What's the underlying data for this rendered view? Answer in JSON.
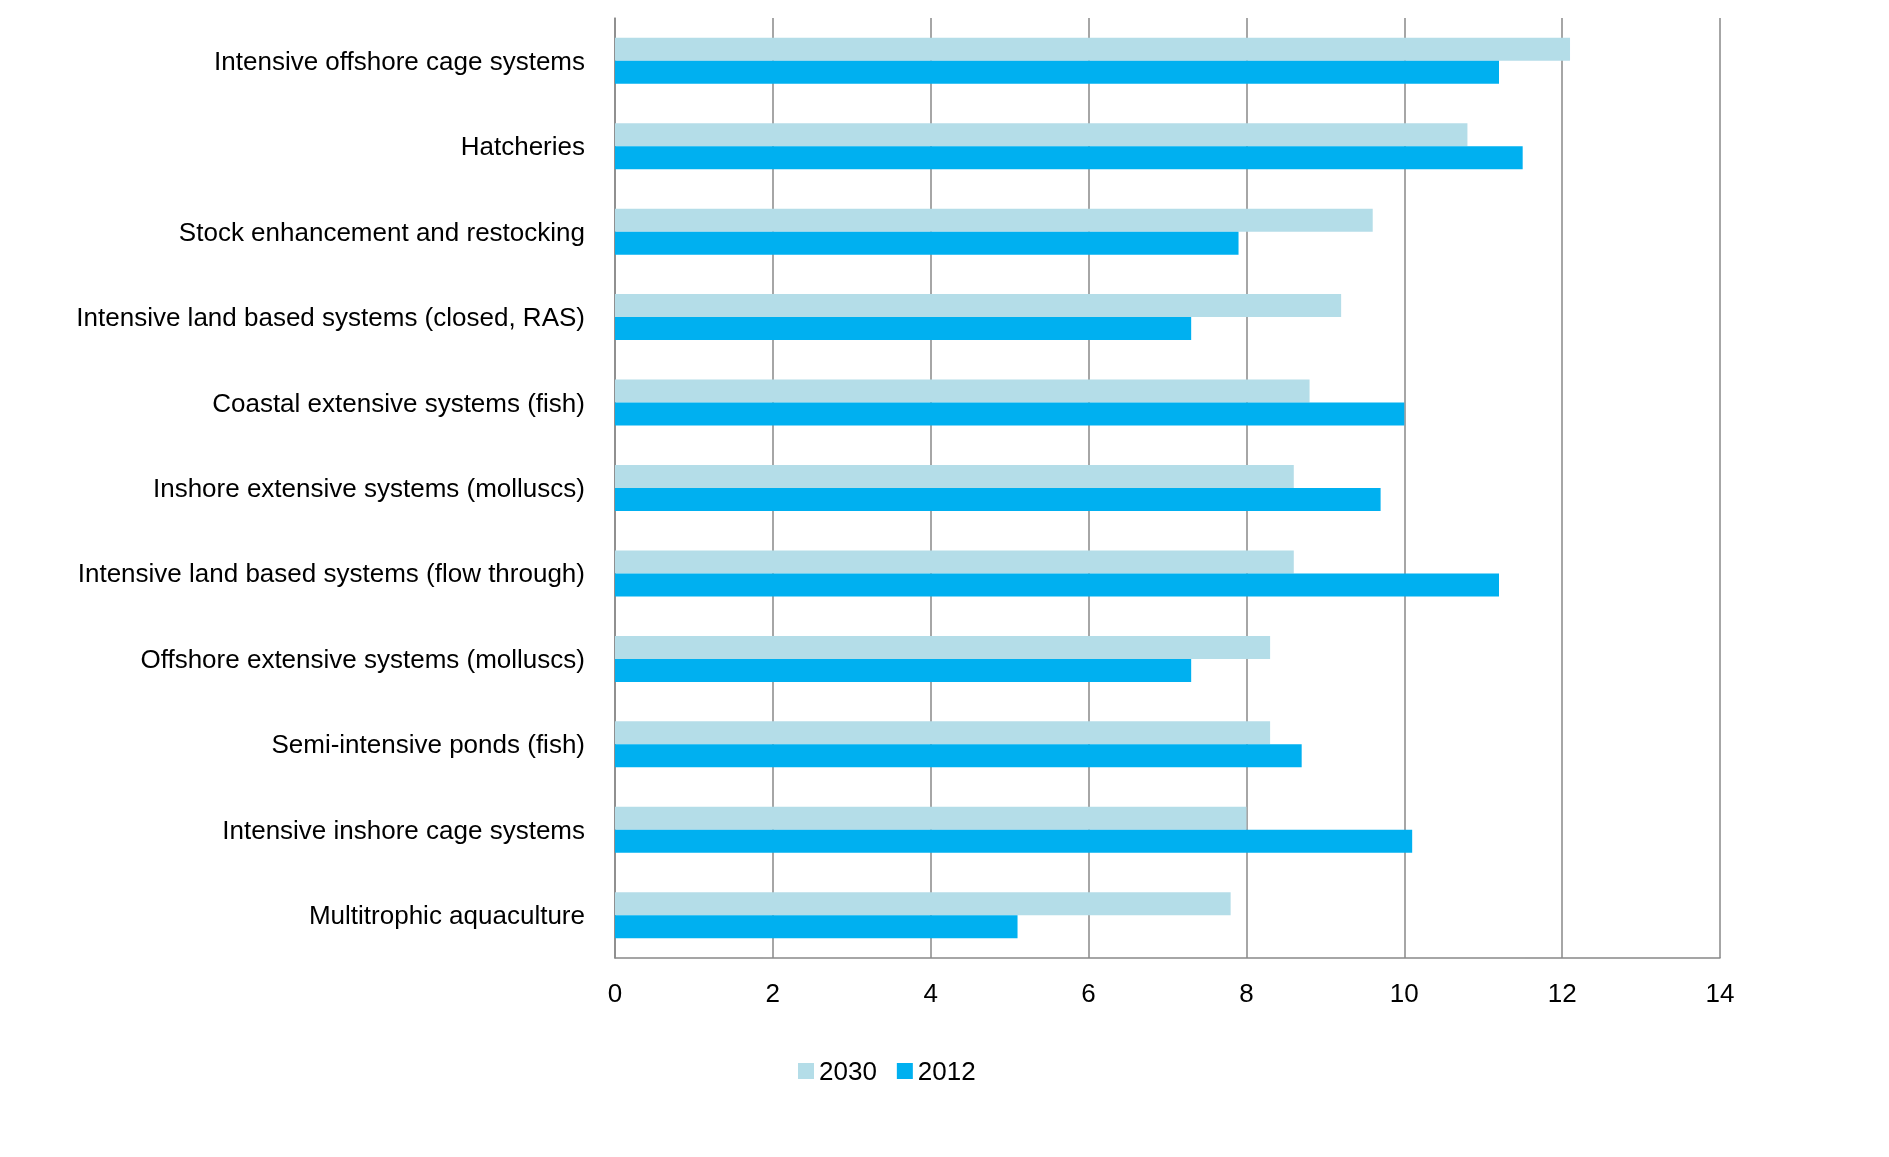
{
  "chart_data": [
    {
      "type": "bar",
      "orientation": "horizontal",
      "categories": [
        "Intensive offshore cage systems",
        "Hatcheries",
        "Stock enhancement and restocking",
        "Intensive land based systems (closed, RAS)",
        "Coastal extensive systems (fish)",
        "Inshore extensive systems (molluscs)",
        "Intensive land based systems (flow through)",
        "Offshore extensive systems (molluscs)",
        "Semi-intensive ponds (fish)",
        "Intensive inshore cage systems",
        "Multitrophic aquaculture"
      ],
      "series": [
        {
          "name": "2030",
          "color": "#b4dde8",
          "values": [
            12.1,
            10.8,
            9.6,
            9.2,
            8.8,
            8.6,
            8.6,
            8.3,
            8.3,
            8.0,
            7.8
          ]
        },
        {
          "name": "2012",
          "color": "#00b0f0",
          "values": [
            11.2,
            11.5,
            7.9,
            7.3,
            10.0,
            9.7,
            11.2,
            7.3,
            8.7,
            10.1,
            5.1
          ]
        }
      ],
      "xlim": [
        0,
        14
      ],
      "xticks": [
        0,
        2,
        4,
        6,
        8,
        10,
        12,
        14
      ],
      "grid": "x",
      "legend": "bottom"
    }
  ]
}
